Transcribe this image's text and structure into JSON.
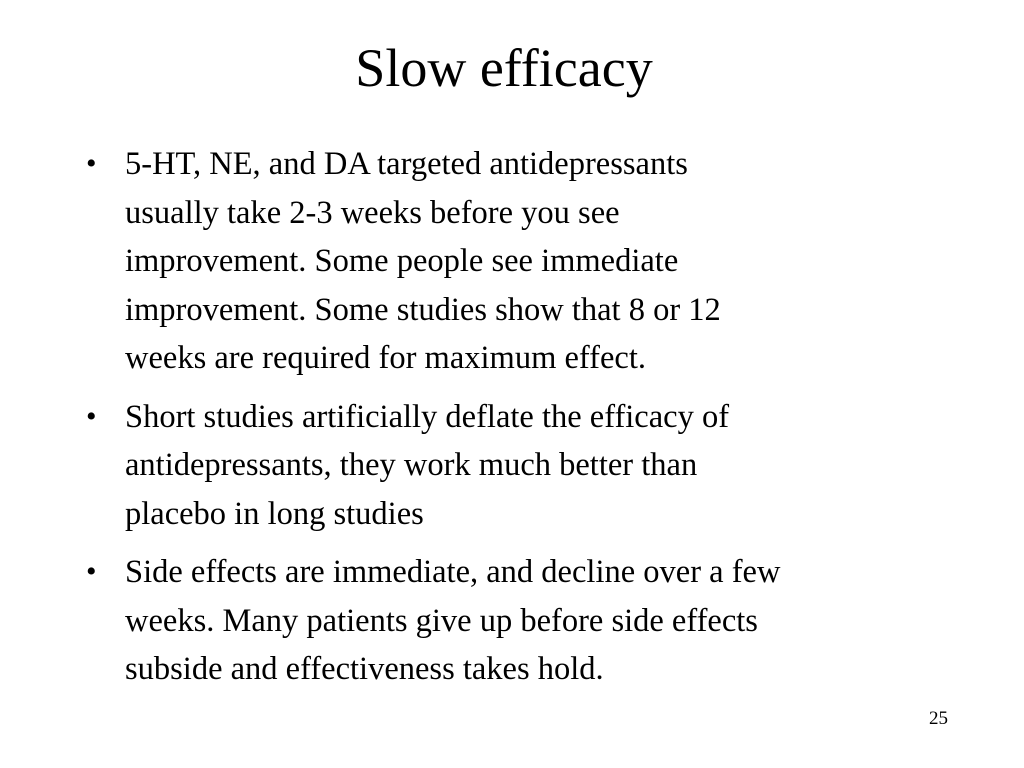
{
  "slide": {
    "title": "Slow efficacy",
    "bullet_symbol": "•",
    "bullets": [
      {
        "lines": [
          "5-HT, NE, and DA targeted antidepressants",
          "usually take 2-3 weeks before you see",
          "improvement. Some people see immediate",
          "improvement. Some studies show that 8 or 12",
          "weeks are required for maximum effect."
        ]
      },
      {
        "lines": [
          "Short studies artificially deflate the efficacy of",
          "antidepressants, they work much better than",
          "placebo in long studies"
        ]
      },
      {
        "lines": [
          "Side effects are immediate, and decline over a few",
          "weeks. Many patients give up before side effects",
          "subside and effectiveness takes hold."
        ]
      }
    ],
    "page_number": "25"
  }
}
